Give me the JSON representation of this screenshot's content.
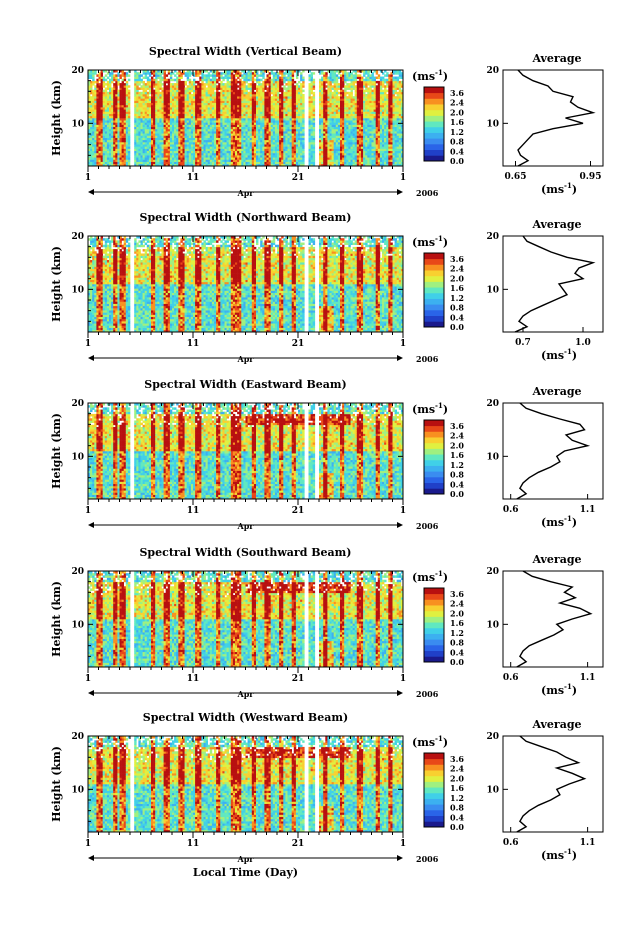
{
  "chart_data": [
    {
      "type": "heatmap",
      "title": "Spectral Width (Vertical Beam)",
      "ylabel": "Height (km)",
      "yticks": [
        "10",
        "20"
      ],
      "xticks": [
        "1",
        "11",
        "21",
        "1"
      ],
      "month_label": "Apr",
      "year_label": "2006",
      "colorbar_unit_base": "(ms",
      "colorbar_unit_exp": "-1",
      "colorbar_ticks": [
        "3.6",
        "2.4",
        "2.0",
        "1.6",
        "1.2",
        "0.8",
        "0.4",
        "0.0"
      ],
      "profile": {
        "title": "Average",
        "yticks": [
          "10",
          "20"
        ],
        "xticks": [
          "0.65",
          "0.95"
        ],
        "xlabel_base": "(ms",
        "xlabel_exp": "-1",
        "xlim": [
          0.6,
          1.0
        ],
        "height_km": [
          2,
          3,
          4,
          5,
          6,
          7,
          8,
          9,
          10,
          11,
          12,
          13,
          14,
          15,
          16,
          17,
          18,
          19,
          20
        ],
        "values": [
          0.66,
          0.7,
          0.67,
          0.66,
          0.68,
          0.7,
          0.72,
          0.8,
          0.92,
          0.85,
          0.96,
          0.9,
          0.87,
          0.88,
          0.8,
          0.78,
          0.72,
          0.68,
          0.66
        ]
      }
    },
    {
      "type": "heatmap",
      "title": "Spectral Width (Northward Beam)",
      "ylabel": "Height (km)",
      "yticks": [
        "10",
        "20"
      ],
      "xticks": [
        "1",
        "11",
        "21",
        "1"
      ],
      "month_label": "Apr",
      "year_label": "2006",
      "colorbar_unit_base": "(ms",
      "colorbar_unit_exp": "-1",
      "colorbar_ticks": [
        "3.6",
        "2.4",
        "2.0",
        "1.6",
        "1.2",
        "0.8",
        "0.4",
        "0.0"
      ],
      "profile": {
        "title": "Average",
        "yticks": [
          "10",
          "20"
        ],
        "xticks": [
          "0.7",
          "1.0"
        ],
        "xlabel_base": "(ms",
        "xlabel_exp": "-1",
        "xlim": [
          0.6,
          1.1
        ],
        "height_km": [
          2,
          3,
          4,
          5,
          6,
          7,
          8,
          9,
          10,
          11,
          12,
          13,
          14,
          15,
          16,
          17,
          18,
          19,
          20
        ],
        "values": [
          0.66,
          0.72,
          0.68,
          0.7,
          0.74,
          0.8,
          0.86,
          0.92,
          0.9,
          0.88,
          1.0,
          0.96,
          0.98,
          1.05,
          0.92,
          0.84,
          0.78,
          0.72,
          0.7
        ]
      }
    },
    {
      "type": "heatmap",
      "title": "Spectral Width (Eastward Beam)",
      "ylabel": "Height (km)",
      "yticks": [
        "10",
        "20"
      ],
      "xticks": [
        "1",
        "11",
        "21",
        "1"
      ],
      "month_label": "Apr",
      "year_label": "2006",
      "colorbar_unit_base": "(ms",
      "colorbar_unit_exp": "-1",
      "colorbar_ticks": [
        "3.6",
        "2.4",
        "2.0",
        "1.6",
        "1.2",
        "0.8",
        "0.4",
        "0.0"
      ],
      "profile": {
        "title": "Average",
        "yticks": [
          "10",
          "20"
        ],
        "xticks": [
          "0.6",
          "1.1"
        ],
        "xlabel_base": "(ms",
        "xlabel_exp": "-1",
        "xlim": [
          0.55,
          1.2
        ],
        "height_km": [
          2,
          3,
          4,
          5,
          6,
          7,
          8,
          9,
          10,
          11,
          12,
          13,
          14,
          15,
          16,
          17,
          18,
          19,
          20
        ],
        "values": [
          0.64,
          0.7,
          0.66,
          0.68,
          0.72,
          0.78,
          0.86,
          0.92,
          0.9,
          0.95,
          1.1,
          1.0,
          0.96,
          1.08,
          1.05,
          0.92,
          0.8,
          0.7,
          0.66
        ]
      }
    },
    {
      "type": "heatmap",
      "title": "Spectral Width (Southward Beam)",
      "ylabel": "Height (km)",
      "yticks": [
        "10",
        "20"
      ],
      "xticks": [
        "1",
        "11",
        "21",
        "1"
      ],
      "month_label": "Apr",
      "year_label": "2006",
      "colorbar_unit_base": "(ms",
      "colorbar_unit_exp": "-1",
      "colorbar_ticks": [
        "3.6",
        "2.4",
        "2.0",
        "1.6",
        "1.2",
        "0.8",
        "0.4",
        "0.0"
      ],
      "profile": {
        "title": "Average",
        "yticks": [
          "10",
          "20"
        ],
        "xticks": [
          "0.6",
          "1.1"
        ],
        "xlabel_base": "(ms",
        "xlabel_exp": "-1",
        "xlim": [
          0.55,
          1.2
        ],
        "height_km": [
          2,
          3,
          4,
          5,
          6,
          7,
          8,
          9,
          10,
          11,
          12,
          13,
          14,
          15,
          16,
          17,
          18,
          19,
          20
        ],
        "values": [
          0.64,
          0.7,
          0.66,
          0.68,
          0.72,
          0.8,
          0.88,
          0.94,
          0.9,
          1.0,
          1.12,
          1.05,
          0.92,
          1.02,
          0.95,
          1.0,
          0.86,
          0.74,
          0.68
        ]
      }
    },
    {
      "type": "heatmap",
      "title": "Spectral Width (Westward Beam)",
      "ylabel": "Height (km)",
      "yticks": [
        "10",
        "20"
      ],
      "xticks": [
        "1",
        "11",
        "21",
        "1"
      ],
      "month_label": "Apr",
      "year_label": "2006",
      "colorbar_unit_base": "(ms",
      "colorbar_unit_exp": "-1",
      "colorbar_ticks": [
        "3.6",
        "2.4",
        "2.0",
        "1.6",
        "1.2",
        "0.8",
        "0.4",
        "0.0"
      ],
      "profile": {
        "title": "Average",
        "yticks": [
          "10",
          "20"
        ],
        "xticks": [
          "0.6",
          "1.1"
        ],
        "xlabel_base": "(ms",
        "xlabel_exp": "-1",
        "xlim": [
          0.55,
          1.2
        ],
        "height_km": [
          2,
          3,
          4,
          5,
          6,
          7,
          8,
          9,
          10,
          11,
          12,
          13,
          14,
          15,
          16,
          17,
          18,
          19,
          20
        ],
        "values": [
          0.64,
          0.7,
          0.66,
          0.68,
          0.72,
          0.78,
          0.86,
          0.92,
          0.9,
          0.98,
          1.08,
          1.0,
          0.9,
          1.04,
          0.96,
          0.9,
          0.8,
          0.7,
          0.66
        ]
      }
    }
  ],
  "heatmap_grid": {
    "day_range": [
      1,
      31
    ],
    "height_range_km": [
      2,
      20
    ],
    "data_gap_days": [
      [
        5.0,
        5.5
      ],
      [
        6.2,
        6.3
      ],
      [
        21.6,
        22.1
      ],
      [
        22.6,
        23.0
      ]
    ],
    "colormap": [
      "#1a1a8c",
      "#2040c8",
      "#2a64e8",
      "#3a8cf0",
      "#3cb0f0",
      "#40d0e8",
      "#60e8c0",
      "#a0f080",
      "#e0f040",
      "#f8d030",
      "#f89020",
      "#e84818",
      "#b81010"
    ]
  },
  "footer": {
    "xlabel": "Local Time (Day)"
  }
}
